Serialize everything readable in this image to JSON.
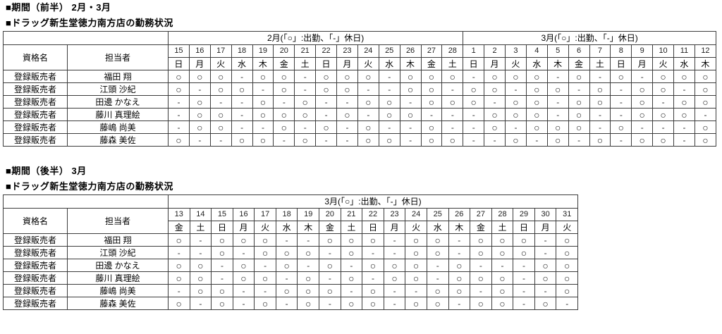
{
  "colors": {
    "background": "#ffffff",
    "border": "#3c3c3c",
    "text": "#000000"
  },
  "legend": {
    "work": "○",
    "off": "-"
  },
  "tables": [
    {
      "period_title": "■期間（前半） 2月・3月",
      "store_title": "■ドラッグ新生堂徳力南方店の勤務状況",
      "qualification_header": "資格名",
      "staff_header": "担当者",
      "month_groups": [
        {
          "label": "2月(「○」:出勤、「-」休日)",
          "dates": [
            "15",
            "16",
            "17",
            "18",
            "19",
            "20",
            "21",
            "22",
            "23",
            "24",
            "25",
            "26",
            "27",
            "28"
          ],
          "days": [
            "日",
            "月",
            "火",
            "水",
            "木",
            "金",
            "土",
            "日",
            "月",
            "火",
            "水",
            "木",
            "金",
            "土"
          ]
        },
        {
          "label": "3月(「○」:出勤、「-」休日)",
          "dates": [
            "1",
            "2",
            "3",
            "4",
            "5",
            "6",
            "7",
            "8",
            "9",
            "10",
            "11",
            "12"
          ],
          "days": [
            "日",
            "月",
            "火",
            "水",
            "木",
            "金",
            "土",
            "日",
            "月",
            "火",
            "水",
            "木"
          ]
        }
      ],
      "rows": [
        {
          "qualification": "登録販売者",
          "name": "福田 翔",
          "marks": [
            "○",
            "○",
            "○",
            "-",
            "○",
            "○",
            "-",
            "○",
            "○",
            "○",
            "-",
            "○",
            "○",
            "○",
            "-",
            "○",
            "○",
            "○",
            "-",
            "○",
            "-",
            "○",
            "-",
            "○",
            "○",
            "○"
          ]
        },
        {
          "qualification": "登録販売者",
          "name": "江頭 沙紀",
          "marks": [
            "○",
            "-",
            "○",
            "○",
            "-",
            "○",
            "-",
            "○",
            "○",
            "-",
            "-",
            "○",
            "○",
            "-",
            "○",
            "○",
            "-",
            "○",
            "○",
            "-",
            "○",
            "-",
            "○",
            "○",
            "-",
            "○"
          ]
        },
        {
          "qualification": "登録販売者",
          "name": "田邊 かなえ",
          "marks": [
            "-",
            "○",
            "-",
            "-",
            "○",
            "-",
            "○",
            "-",
            "-",
            "○",
            "○",
            "-",
            "○",
            "○",
            "○",
            "-",
            "○",
            "○",
            "-",
            "○",
            "○",
            "-",
            "○",
            "-",
            "○",
            "○"
          ]
        },
        {
          "qualification": "登録販売者",
          "name": "藤川 真理絵",
          "marks": [
            "-",
            "○",
            "○",
            "-",
            "○",
            "○",
            "○",
            "-",
            "○",
            "-",
            "○",
            "○",
            "-",
            "-",
            "-",
            "○",
            "○",
            "○",
            "-",
            "○",
            "-",
            "-",
            "○",
            "○",
            "○",
            "-"
          ]
        },
        {
          "qualification": "登録販売者",
          "name": "藤嶋 尚美",
          "marks": [
            "-",
            "○",
            "○",
            "-",
            "-",
            "○",
            "-",
            "○",
            "-",
            "○",
            "-",
            "-",
            "○",
            "-",
            "-",
            "○",
            "-",
            "○",
            "○",
            "○",
            "-",
            "○",
            "-",
            "-",
            "-",
            "○"
          ]
        },
        {
          "qualification": "登録販売者",
          "name": "藤森 美佐",
          "marks": [
            "○",
            "-",
            "-",
            "○",
            "○",
            "-",
            "○",
            "-",
            "-",
            "○",
            "○",
            "-",
            "○",
            "○",
            "-",
            "-",
            "○",
            "-",
            "○",
            "-",
            "○",
            "-",
            "○",
            "○",
            "-",
            "○"
          ]
        }
      ]
    },
    {
      "period_title": "■期間（後半） 3月",
      "store_title": "■ドラッグ新生堂徳力南方店の勤務状況",
      "qualification_header": "資格名",
      "staff_header": "担当者",
      "month_groups": [
        {
          "label": "3月(「○」:出勤、「-」休日)",
          "dates": [
            "13",
            "14",
            "15",
            "16",
            "17",
            "18",
            "19",
            "20",
            "21",
            "22",
            "23",
            "24",
            "25",
            "26",
            "27",
            "28",
            "29",
            "30",
            "31"
          ],
          "days": [
            "金",
            "土",
            "日",
            "月",
            "火",
            "水",
            "木",
            "金",
            "土",
            "日",
            "月",
            "火",
            "水",
            "木",
            "金",
            "土",
            "日",
            "月",
            "火"
          ]
        }
      ],
      "rows": [
        {
          "qualification": "登録販売者",
          "name": "福田 翔",
          "marks": [
            "○",
            "-",
            "○",
            "○",
            "○",
            "-",
            "-",
            "○",
            "○",
            "○",
            "-",
            "○",
            "○",
            "-",
            "○",
            "○",
            "○",
            "-",
            "○"
          ]
        },
        {
          "qualification": "登録販売者",
          "name": "江頭 沙紀",
          "marks": [
            "-",
            "-",
            "○",
            "-",
            "○",
            "○",
            "○",
            "-",
            "○",
            "-",
            "-",
            "○",
            "○",
            "-",
            "○",
            "○",
            "○",
            "-",
            "○"
          ]
        },
        {
          "qualification": "登録販売者",
          "name": "田邊 かなえ",
          "marks": [
            "○",
            "○",
            "-",
            "○",
            "-",
            "○",
            "-",
            "○",
            "-",
            "○",
            "○",
            "○",
            "-",
            "○",
            "-",
            "-",
            "-",
            "○",
            "○"
          ]
        },
        {
          "qualification": "登録販売者",
          "name": "藤川 真理絵",
          "marks": [
            "○",
            "○",
            "-",
            "○",
            "○",
            "-",
            "○",
            "-",
            "○",
            "-",
            "○",
            "○",
            "-",
            "○",
            "○",
            "○",
            "-",
            "○",
            "○"
          ]
        },
        {
          "qualification": "登録販売者",
          "name": "藤嶋 尚美",
          "marks": [
            "-",
            "○",
            "○",
            "-",
            "-",
            "○",
            "○",
            "○",
            "-",
            "○",
            "-",
            "-",
            "○",
            "○",
            "-",
            "○",
            "-",
            "-",
            "○"
          ]
        },
        {
          "qualification": "登録販売者",
          "name": "藤森 美佐",
          "marks": [
            "○",
            "-",
            "○",
            "-",
            "○",
            "-",
            "○",
            "-",
            "○",
            "○",
            "-",
            "○",
            "○",
            "-",
            "○",
            "○",
            "-",
            "○",
            "-"
          ]
        }
      ]
    }
  ]
}
